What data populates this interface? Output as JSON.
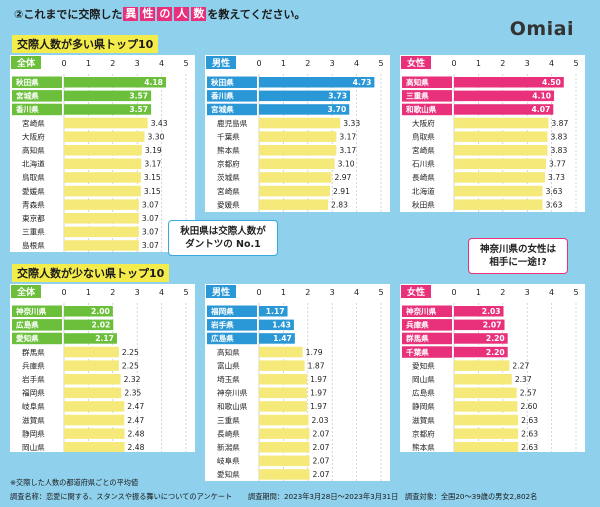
{
  "header": {
    "question_pre": "②これまでに交際した",
    "question_keywords": [
      "異",
      "性",
      "の",
      "人",
      "数"
    ],
    "question_post": "を教えてください。",
    "logo": "Omiai"
  },
  "sections": {
    "top10_title": "交際人数が多い県トップ10",
    "bottom10_title": "交際人数が少ない県トップ10"
  },
  "bubbles": {
    "akita_line1": "秋田県は交際人数が",
    "akita_line2": "ダントツの No.1",
    "kanagawa_line1": "神奈川県の女性は",
    "kanagawa_line2": "相手に一途!?"
  },
  "colors": {
    "all_accent": "#6bbf3a",
    "male_accent": "#2a98d6",
    "female_accent": "#e8317a",
    "bar_default": "#f5e97a"
  },
  "footer": {
    "note": "※交際した人数の都道府県ごとの平均値",
    "survey_name": "調査名称：恋愛に関する、スタンスや振る舞いについてのアンケート",
    "survey_period": "調査期間：2023年3月28日～2023年3月31日",
    "survey_target": "調査対象：全国20～39歳の男女2,802名"
  },
  "chart_data": [
    {
      "type": "bar",
      "orientation": "horizontal",
      "group": "全体",
      "ranking": "top",
      "xlim": [
        0,
        5
      ],
      "ticks": [
        "0",
        "1",
        "2",
        "3",
        "4",
        "5"
      ],
      "highlight_count": 3,
      "categories": [
        "秋田県",
        "宮城県",
        "香川県",
        "宮崎県",
        "大阪府",
        "高知県",
        "北海道",
        "鳥取県",
        "愛媛県",
        "青森県",
        "東京都",
        "三重県",
        "島根県"
      ],
      "values": [
        4.18,
        3.57,
        3.57,
        3.43,
        3.3,
        3.19,
        3.17,
        3.15,
        3.15,
        3.07,
        3.07,
        3.07,
        3.07
      ],
      "labels": [
        "4.18",
        "3.57",
        "3.57",
        "3.43",
        "3.30",
        "3.19",
        "3.17",
        "3.15",
        "3.15",
        "3.07",
        "3.07",
        "3.07",
        "3.07"
      ]
    },
    {
      "type": "bar",
      "orientation": "horizontal",
      "group": "男性",
      "ranking": "top",
      "xlim": [
        0,
        5
      ],
      "ticks": [
        "0",
        "1",
        "2",
        "3",
        "4",
        "5"
      ],
      "highlight_count": 3,
      "categories": [
        "秋田県",
        "香川県",
        "宮城県",
        "鹿児島県",
        "千葉県",
        "熊本県",
        "京都府",
        "茨城県",
        "宮崎県",
        "愛媛県"
      ],
      "values": [
        4.73,
        3.73,
        3.7,
        3.33,
        3.17,
        3.17,
        3.1,
        2.97,
        2.91,
        2.83
      ],
      "labels": [
        "4.73",
        "3.73",
        "3.70",
        "3.33",
        "3.17",
        "3.17",
        "3.10",
        "2.97",
        "2.91",
        "2.83"
      ]
    },
    {
      "type": "bar",
      "orientation": "horizontal",
      "group": "女性",
      "ranking": "top",
      "xlim": [
        0,
        5
      ],
      "ticks": [
        "0",
        "1",
        "2",
        "3",
        "4",
        "5"
      ],
      "highlight_count": 3,
      "categories": [
        "高知県",
        "三重県",
        "和歌山県",
        "大阪府",
        "鳥取県",
        "宮崎県",
        "石川県",
        "長崎県",
        "北海道",
        "秋田県"
      ],
      "values": [
        4.5,
        4.1,
        4.07,
        3.87,
        3.83,
        3.83,
        3.77,
        3.73,
        3.63,
        3.63
      ],
      "labels": [
        "4.50",
        "4.10",
        "4.07",
        "3.87",
        "3.83",
        "3.83",
        "3.77",
        "3.73",
        "3.63",
        "3.63"
      ]
    },
    {
      "type": "bar",
      "orientation": "horizontal",
      "group": "全体",
      "ranking": "bottom",
      "xlim": [
        0,
        5
      ],
      "ticks": [
        "0",
        "1",
        "2",
        "3",
        "4",
        "5"
      ],
      "highlight_count": 3,
      "categories": [
        "神奈川県",
        "広島県",
        "愛知県",
        "群馬県",
        "兵庫県",
        "岩手県",
        "福岡県",
        "岐阜県",
        "滋賀県",
        "静岡県",
        "岡山県"
      ],
      "values": [
        2.0,
        2.02,
        2.17,
        2.25,
        2.25,
        2.32,
        2.35,
        2.47,
        2.47,
        2.48,
        2.48
      ],
      "labels": [
        "2.00",
        "2.02",
        "2.17",
        "2.25",
        "2.25",
        "2.32",
        "2.35",
        "2.47",
        "2.47",
        "2.48",
        "2.48"
      ]
    },
    {
      "type": "bar",
      "orientation": "horizontal",
      "group": "男性",
      "ranking": "bottom",
      "xlim": [
        0,
        5
      ],
      "ticks": [
        "0",
        "1",
        "2",
        "3",
        "4",
        "5"
      ],
      "highlight_count": 3,
      "categories": [
        "福岡県",
        "岩手県",
        "広島県",
        "高知県",
        "富山県",
        "埼玉県",
        "神奈川県",
        "和歌山県",
        "三重県",
        "長崎県",
        "新潟県",
        "岐阜県",
        "愛知県"
      ],
      "values": [
        1.17,
        1.43,
        1.47,
        1.79,
        1.87,
        1.97,
        1.97,
        1.97,
        2.03,
        2.07,
        2.07,
        2.07,
        2.07
      ],
      "labels": [
        "1.17",
        "1.43",
        "1.47",
        "1.79",
        "1.87",
        "1.97",
        "1.97",
        "1.97",
        "2.03",
        "2.07",
        "2.07",
        "2.07",
        "2.07"
      ]
    },
    {
      "type": "bar",
      "orientation": "horizontal",
      "group": "女性",
      "ranking": "bottom",
      "xlim": [
        0,
        5
      ],
      "ticks": [
        "0",
        "1",
        "2",
        "3",
        "4",
        "5"
      ],
      "highlight_count": 4,
      "categories": [
        "神奈川県",
        "兵庫県",
        "群馬県",
        "千葉県",
        "愛知県",
        "岡山県",
        "広島県",
        "静岡県",
        "滋賀県",
        "京都府",
        "熊本県"
      ],
      "values": [
        2.03,
        2.07,
        2.2,
        2.2,
        2.27,
        2.37,
        2.57,
        2.6,
        2.63,
        2.63,
        2.63
      ],
      "labels": [
        "2.03",
        "2.07",
        "2.20",
        "2.20",
        "2.27",
        "2.37",
        "2.57",
        "2.60",
        "2.63",
        "2.63",
        "2.63"
      ]
    }
  ]
}
